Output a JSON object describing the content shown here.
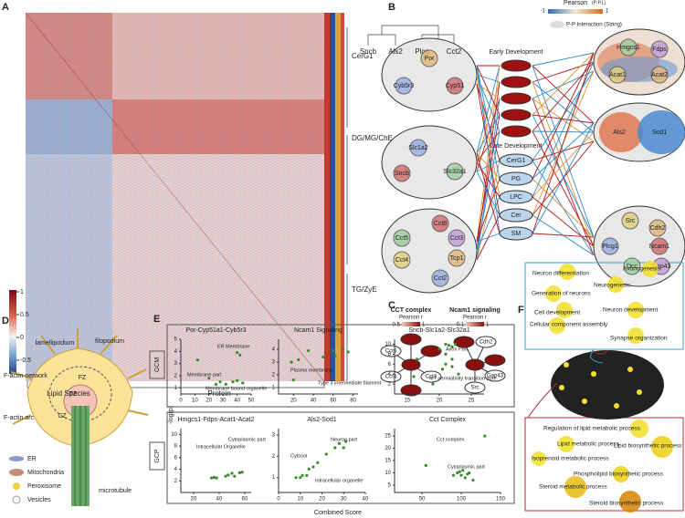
{
  "panel_labels": [
    "A",
    "B",
    "C",
    "D",
    "E",
    "F"
  ],
  "panel_a": {
    "colorbar_ticks": [
      1,
      0.5,
      0,
      -0.5
    ],
    "cluster_labels": [
      "CerG1",
      "DG/MG/ChE",
      "TG/ZyE"
    ],
    "dendrogram_labels": [
      "Sncb",
      "Als2",
      "Plcg",
      "Cct2"
    ],
    "x_groups": [
      "Lipid Species",
      "Protein"
    ]
  },
  "panel_b": {
    "legend_title": "Pearson",
    "legend_subtitle": "(P-P,L)",
    "legend_min": -1,
    "legend_max": 1,
    "legend_interaction": "P-P Interaction (String)",
    "early_label": "Early Development",
    "late_label": "Late Development",
    "late_nodes": [
      "CerG1",
      "PG",
      "LPC",
      "Cer",
      "SM"
    ],
    "clusters": [
      [
        "Por",
        "Cyb5r3",
        "Cyp51"
      ],
      [
        "Slc1a2",
        "Sncb",
        "Slc32a1"
      ],
      [
        "Cct8",
        "Cct5",
        "Cct3",
        "Cct4",
        "Tcp1",
        "Cct2"
      ],
      [
        "Hmgcs1",
        "Fdps",
        "Acat1",
        "Acat2"
      ],
      [
        "Als2",
        "Sod1"
      ],
      [
        "Src",
        "Cdh2",
        "Plcg1",
        "Ncam1",
        "Dcc",
        "Gap43"
      ]
    ]
  },
  "panel_c": {
    "cct_title": "CCT complex",
    "cct_scale_label": "Pearson r",
    "cct_min": 0.5,
    "cct_max": 1,
    "cct_nodes": [
      "Cct6",
      "Cct4",
      "Cct3"
    ],
    "ncam_title": "Ncam1 signaling",
    "ncam_scale_label": "Pearson r",
    "ncam_min": 0.1,
    "ncam_max": 1,
    "ncam_nodes": [
      "Cdh2",
      "Src",
      "Gap43"
    ]
  },
  "panel_d": {
    "labels": [
      "lamellipodium",
      "filopodium",
      "F-actin network",
      "FZ",
      "TZ",
      "F-actin arc",
      "CZ",
      "microtubule"
    ],
    "legend": [
      "ER",
      "Mitochondria",
      "Peroxisome",
      "Vesicles"
    ]
  },
  "panel_e": {
    "row_labels": [
      "GCM",
      "GCP"
    ],
    "y_label": "-log(p)",
    "x_label": "Combined Score"
  },
  "panel_f": {
    "neural_terms": [
      "Neuron differentiation",
      "Axonogenesis",
      "Neurogenesis",
      "Generation of neurons",
      "Neuron development",
      "Cell development",
      "Cellular component assembly",
      "Synapse organization"
    ],
    "lipid_terms": [
      "Regulation of lipid metabolic process",
      "Lipid metabolic process",
      "Lipid biosynthetic process",
      "Isoprenoid metabolic process",
      "Phospholipid biosynthetic process",
      "Steroid metabolic process",
      "Steroid biosynthetic process"
    ]
  },
  "chart_data": [
    {
      "type": "scatter",
      "title": "Por-Cyp51a1-Cyb5r3",
      "color": "#3b8a2c",
      "x": [
        12,
        40,
        42,
        20,
        25,
        28,
        32,
        37,
        40,
        44
      ],
      "values": [
        3.3,
        3.9,
        3.7,
        1.8,
        1.3,
        1.5,
        1.3,
        1.5,
        1.6,
        1.4
      ],
      "xlim": [
        0,
        50
      ],
      "ylim": [
        0.5,
        5
      ],
      "xticks": [
        0,
        10,
        20,
        30,
        40,
        50
      ],
      "yticks": [
        1,
        2,
        3,
        4,
        5
      ],
      "annotations": [
        "ER Membrane",
        "Membrane part",
        "Membrane bound organelle"
      ]
    },
    {
      "type": "scatter",
      "title": "Ncam1 Signaling",
      "color": "#3b8a2c",
      "x": [
        18,
        20,
        25,
        35,
        50,
        60,
        62,
        70,
        75
      ],
      "values": [
        3,
        1.6,
        3.2,
        3.9,
        3.4,
        3.9,
        3.5,
        4,
        3.8
      ],
      "xlim": [
        5,
        85
      ],
      "ylim": [
        0.5,
        4.8
      ],
      "xticks": [
        20,
        40,
        60,
        80
      ],
      "yticks": [
        1,
        2,
        3,
        4
      ],
      "annotations": [
        "Plasma membrane",
        "Type 3 intermediate filament"
      ]
    },
    {
      "type": "scatter",
      "title": "Sncb-Slc1a2-Slc32a1",
      "color": "#3b8a2c",
      "x": [
        16,
        16.5,
        20,
        21,
        21.5,
        22,
        22.5,
        21,
        22,
        20.5,
        21,
        22,
        23,
        19
      ],
      "values": [
        3.5,
        7,
        9,
        10,
        9.8,
        9.5,
        10,
        8,
        7,
        5,
        6,
        5.5,
        4,
        2
      ],
      "xlim": [
        13,
        27
      ],
      "ylim": [
        0,
        11
      ],
      "xticks": [
        15,
        20,
        25
      ],
      "yticks": [
        2,
        4,
        6,
        8,
        10
      ],
      "annotations": [
        "Axon Part",
        "MT permiability transition pore"
      ]
    },
    {
      "type": "scatter",
      "title": "Hmgcs1-Fdps-Acat1-Acat2",
      "color": "#3b8a2c",
      "x": [
        34,
        36,
        38,
        45,
        47,
        50,
        52,
        56,
        58
      ],
      "values": [
        2.5,
        2.6,
        2.5,
        2.8,
        3,
        3.3,
        2.8,
        3.4,
        3.5
      ],
      "xlim": [
        10,
        65
      ],
      "ylim": [
        0,
        11
      ],
      "xticks": [
        20,
        40,
        60
      ],
      "yticks": [
        2,
        4,
        6,
        8,
        10
      ],
      "annotations": [
        "Intracellular Organelle",
        "Cytoplasmic part"
      ]
    },
    {
      "type": "scatter",
      "title": "Als2-Sod1",
      "color": "#3b8a2c",
      "x": [
        8,
        10,
        11,
        13,
        14,
        16,
        18,
        22,
        26,
        28,
        30,
        31
      ],
      "values": [
        1,
        1,
        1.1,
        1.1,
        1.4,
        1.5,
        1.7,
        2.1,
        2.4,
        2.6,
        2.4,
        2.7
      ],
      "xlim": [
        0,
        40
      ],
      "ylim": [
        0.3,
        3.3
      ],
      "xticks": [
        0,
        10,
        20,
        30,
        40
      ],
      "yticks": [
        1,
        2,
        3
      ],
      "annotations": [
        "Neuron part",
        "Cytosol",
        "Intracellular organelle"
      ]
    },
    {
      "type": "scatter",
      "title": "Cct Complex",
      "color": "#3b8a2c",
      "x": [
        55,
        90,
        95,
        98,
        100,
        102,
        105,
        108,
        110,
        115,
        130
      ],
      "values": [
        13,
        9,
        10,
        10.5,
        9,
        11,
        8,
        9.5,
        10,
        7,
        25
      ],
      "xlim": [
        15,
        150
      ],
      "ylim": [
        2,
        28
      ],
      "xticks": [
        50,
        100,
        150
      ],
      "yticks": [
        5,
        10,
        15,
        20,
        25
      ],
      "annotations": [
        "Cct complex",
        "Cytoplasmic part"
      ]
    }
  ]
}
